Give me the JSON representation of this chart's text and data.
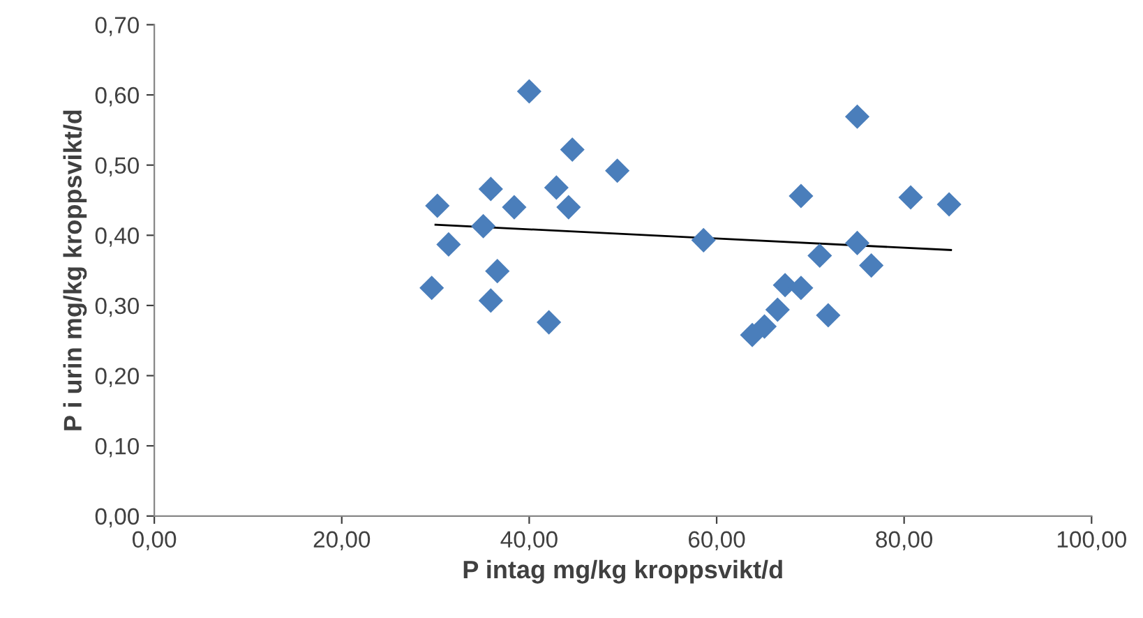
{
  "chart_data": {
    "type": "scatter",
    "xlabel": "P intag mg/kg kroppsvikt/d",
    "ylabel": "P i urin mg/kg kroppsvikt/d",
    "xlim": [
      0,
      100
    ],
    "ylim": [
      0,
      0.7
    ],
    "xticks": [
      {
        "value": 0,
        "label": "0,00"
      },
      {
        "value": 20,
        "label": "20,00"
      },
      {
        "value": 40,
        "label": "40,00"
      },
      {
        "value": 60,
        "label": "60,00"
      },
      {
        "value": 80,
        "label": "80,00"
      },
      {
        "value": 100,
        "label": "100,00"
      }
    ],
    "yticks": [
      {
        "value": 0,
        "label": "0,00"
      },
      {
        "value": 0.1,
        "label": "0,10"
      },
      {
        "value": 0.2,
        "label": "0,20"
      },
      {
        "value": 0.3,
        "label": "0,30"
      },
      {
        "value": 0.4,
        "label": "0,40"
      },
      {
        "value": 0.5,
        "label": "0,50"
      },
      {
        "value": 0.6,
        "label": "0,60"
      },
      {
        "value": 0.7,
        "label": "0,70"
      }
    ],
    "grid": false,
    "legend": false,
    "marker": "diamond",
    "series": [
      {
        "color": "#4a7ebb",
        "x": [
          29.6,
          30.2,
          31.4,
          35.1,
          35.9,
          35.9,
          36.6,
          38.4,
          40.0,
          42.1,
          42.9,
          44.2,
          44.6,
          49.4,
          58.6,
          63.8,
          65.1,
          66.5,
          67.3,
          69.0,
          69.0,
          71.0,
          71.9,
          75.0,
          75.0,
          76.5,
          80.7,
          84.8
        ],
        "values": [
          0.325,
          0.442,
          0.387,
          0.413,
          0.466,
          0.307,
          0.349,
          0.44,
          0.605,
          0.276,
          0.468,
          0.44,
          0.522,
          0.492,
          0.393,
          0.258,
          0.27,
          0.294,
          0.329,
          0.325,
          0.456,
          0.371,
          0.286,
          0.569,
          0.389,
          0.357,
          0.454,
          0.444
        ]
      },
      {
        "type": "line",
        "color": "#000000",
        "marker": "none",
        "x": [
          30,
          85
        ],
        "values": [
          0.415,
          0.379
        ]
      }
    ]
  }
}
